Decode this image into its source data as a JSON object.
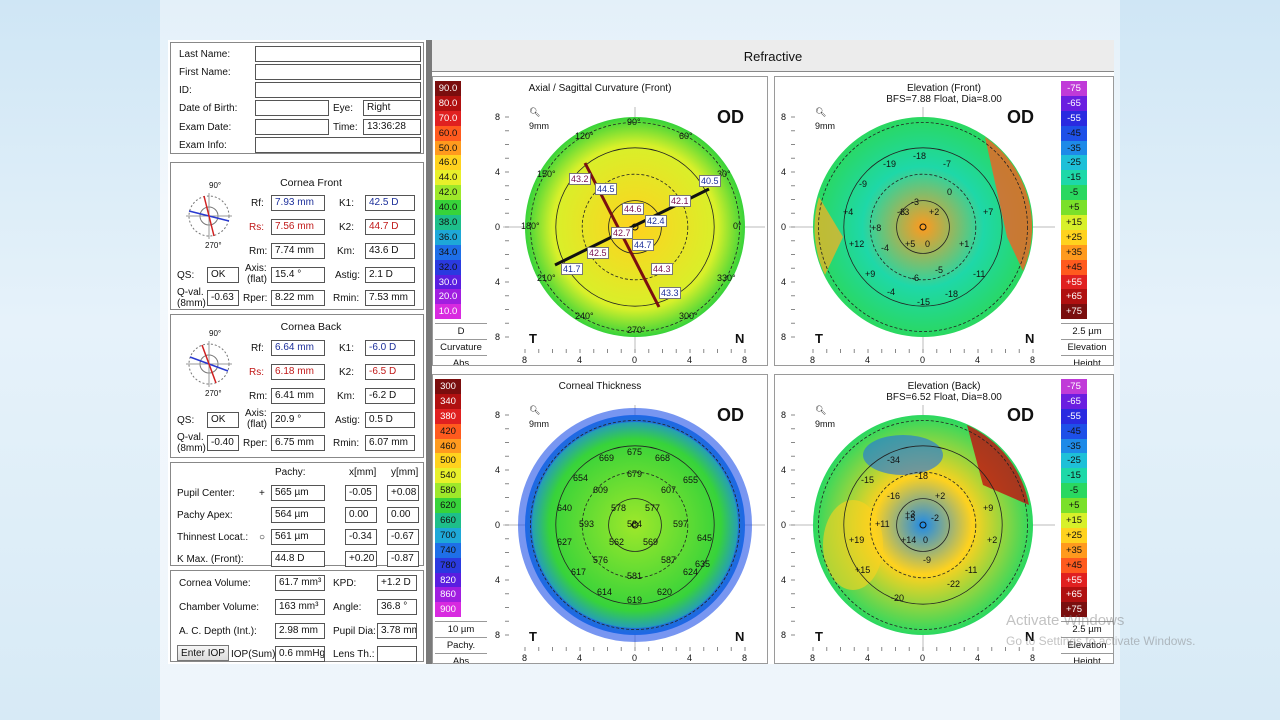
{
  "patient": {
    "last_name_label": "Last Name:",
    "first_name_label": "First Name:",
    "id_label": "ID:",
    "dob_label": "Date of Birth:",
    "eye_label": "Eye:",
    "eye_value": "Right",
    "exam_date_label": "Exam Date:",
    "time_label": "Time:",
    "time_value": "13:36:28",
    "exam_info_label": "Exam Info:"
  },
  "cornea_front": {
    "title": "Cornea Front",
    "rf_label": "Rf:",
    "rf": "7.93 mm",
    "k1_label": "K1:",
    "k1": "42.5 D",
    "rs_label": "Rs:",
    "rs": "7.56 mm",
    "k2_label": "K2:",
    "k2": "44.7 D",
    "rm_label": "Rm:",
    "rm": "7.74 mm",
    "km_label": "Km:",
    "km": "43.6 D",
    "qs_label": "QS:",
    "qs": "OK",
    "axis_label": "Axis:",
    "axis_sub": "(flat)",
    "axis": "15.4 °",
    "astig_label": "Astig:",
    "astig": "2.1 D",
    "qval_label": "Q-val.",
    "qval_sub": "(8mm)",
    "qval": "-0.63",
    "rper_label": "Rper:",
    "rper": "8.22 mm",
    "rmin_label": "Rmin:",
    "rmin": "7.53 mm",
    "deg_top": "90°",
    "deg_bottom": "270°"
  },
  "cornea_back": {
    "title": "Cornea Back",
    "rf_label": "Rf:",
    "rf": "6.64 mm",
    "k1_label": "K1:",
    "k1": "-6.0 D",
    "rs_label": "Rs:",
    "rs": "6.18 mm",
    "k2_label": "K2:",
    "k2": "-6.5 D",
    "rm_label": "Rm:",
    "rm": "6.41 mm",
    "km_label": "Km:",
    "km": "-6.2 D",
    "qs_label": "QS:",
    "qs": "OK",
    "axis_label": "Axis:",
    "axis_sub": "(flat)",
    "axis": "20.9 °",
    "astig_label": "Astig:",
    "astig": "0.5 D",
    "qval_label": "Q-val.",
    "qval_sub": "(8mm)",
    "qval": "-0.40",
    "rper_label": "Rper:",
    "rper": "6.75 mm",
    "rmin_label": "Rmin:",
    "rmin": "6.07 mm",
    "deg_top": "90°",
    "deg_bottom": "270°"
  },
  "pachy": {
    "col_pachy": "Pachy:",
    "col_x": "x[mm]",
    "col_y": "y[mm]",
    "rows": [
      {
        "label": "Pupil Center:",
        "mark": "+",
        "pachy": "565 µm",
        "x": "-0.05",
        "y": "+0.08"
      },
      {
        "label": "Pachy Apex:",
        "mark": "",
        "pachy": "564 µm",
        "x": "0.00",
        "y": "0.00"
      },
      {
        "label": "Thinnest Locat.:",
        "mark": "○",
        "pachy": "561 µm",
        "x": "-0.34",
        "y": "-0.67"
      },
      {
        "label": "K Max. (Front):",
        "mark": "",
        "pachy": "44.8 D",
        "x": "+0.20",
        "y": "-0.87"
      }
    ]
  },
  "volumes": {
    "cornea_volume_label": "Cornea Volume:",
    "cornea_volume": "61.7 mm³",
    "kpd_label": "KPD:",
    "kpd": "+1.2 D",
    "chamber_volume_label": "Chamber Volume:",
    "chamber_volume": "163 mm³",
    "angle_label": "Angle:",
    "angle": "36.8 °",
    "ac_depth_label": "A. C. Depth (Int.):",
    "ac_depth": "2.98 mm",
    "pupil_dia_label": "Pupil Dia:",
    "pupil_dia": "3.78 mm",
    "enter_iop": "Enter IOP",
    "iop_label": "IOP(Sum):",
    "iop": "0.6 mmHg",
    "lens_label": "Lens Th.:",
    "lens": ""
  },
  "header": {
    "title": "Refractive"
  },
  "maps": {
    "axial": {
      "title": "Axial / Sagittal Curvature (Front)",
      "subtitle": "",
      "eye": "OD",
      "t": "T",
      "n": "N",
      "zoom": "9mm",
      "scale": [
        "90.0",
        "80.0",
        "70.0",
        "60.0",
        "50.0",
        "46.0",
        "44.0",
        "42.0",
        "40.0",
        "38.0",
        "36.0",
        "34.0",
        "32.0",
        "30.0",
        "20.0",
        "10.0"
      ],
      "scale_colors": [
        "#7a0e0e",
        "#b01010",
        "#e02020",
        "#ff5a1e",
        "#ff9a1e",
        "#ffd21e",
        "#e8f02a",
        "#9ee82a",
        "#37d33a",
        "#1ebf8a",
        "#1ea8d8",
        "#1e6fe8",
        "#2a3ae0",
        "#5a1ee0",
        "#a01ee0",
        "#d82ae0"
      ],
      "unit": "D",
      "under1": "Curvature",
      "under2": "Abs",
      "labels": [
        "43.2",
        "44.5",
        "44.6",
        "42.4",
        "42.1",
        "40.5",
        "42.7",
        "44.7",
        "42.5",
        "41.7",
        "44.3",
        "43.3"
      ],
      "degrees": [
        "90°",
        "60°",
        "30°",
        "120°",
        "150°",
        "180°",
        "0°",
        "210°",
        "240°",
        "270°",
        "300°",
        "330°"
      ]
    },
    "elev_front": {
      "title": "Elevation (Front)",
      "subtitle": "BFS=7.88 Float, Dia=8.00",
      "eye": "OD",
      "t": "T",
      "n": "N",
      "zoom": "9mm",
      "scale": [
        "-75",
        "-65",
        "-55",
        "-45",
        "-35",
        "-25",
        "-15",
        "-5",
        "+5",
        "+15",
        "+25",
        "+35",
        "+45",
        "+55",
        "+65",
        "+75"
      ],
      "scale_colors": [
        "#c03ad8",
        "#6a1ee0",
        "#2a2ae0",
        "#1e50e8",
        "#1e8ae8",
        "#1ec0d8",
        "#1ed8a8",
        "#2ad860",
        "#7ae02a",
        "#d8f02a",
        "#ffd21e",
        "#ff9a1e",
        "#ff5a1e",
        "#e02020",
        "#b01010",
        "#7a0e0e"
      ],
      "unit": "2.5 µm",
      "under1": "Elevation",
      "under2": "Height",
      "labels": [
        "-19",
        "-18",
        "-7",
        "-9",
        "-3",
        "0",
        "-3",
        "+4",
        "+3",
        "+2",
        "+7",
        "+8",
        "-4",
        "+5",
        "0",
        "+1",
        "+12",
        "+9",
        "-6",
        "-5",
        "-11",
        "-4",
        "-15",
        "-18"
      ]
    },
    "thickness": {
      "title": "Corneal Thickness",
      "subtitle": "",
      "eye": "OD",
      "t": "T",
      "n": "N",
      "zoom": "9mm",
      "scale": [
        "300",
        "340",
        "380",
        "420",
        "460",
        "500",
        "540",
        "580",
        "620",
        "660",
        "700",
        "740",
        "780",
        "820",
        "860",
        "900"
      ],
      "scale_colors": [
        "#7a0e0e",
        "#b01010",
        "#e02020",
        "#ff5a1e",
        "#ff9a1e",
        "#ffd21e",
        "#e8f02a",
        "#9ee82a",
        "#37d33a",
        "#1ebf8a",
        "#1ea8d8",
        "#1e6fe8",
        "#2a3ae0",
        "#5a1ee0",
        "#a01ee0",
        "#d82ae0"
      ],
      "unit": "10 µm",
      "under1": "Pachy.",
      "under2": "Abs",
      "labels": [
        "675",
        "669",
        "668",
        "679",
        "654",
        "609",
        "607",
        "655",
        "578",
        "577",
        "640",
        "593",
        "584",
        "597",
        "645",
        "627",
        "562",
        "569",
        "635",
        "576",
        "587",
        "617",
        "581",
        "624",
        "614",
        "619",
        "620"
      ]
    },
    "elev_back": {
      "title": "Elevation (Back)",
      "subtitle": "BFS=6.52 Float, Dia=8.00",
      "eye": "OD",
      "t": "T",
      "n": "N",
      "zoom": "9mm",
      "scale": [
        "-75",
        "-65",
        "-55",
        "-45",
        "-35",
        "-25",
        "-15",
        "-5",
        "+5",
        "+15",
        "+25",
        "+35",
        "+45",
        "+55",
        "+65",
        "+75"
      ],
      "scale_colors": [
        "#c03ad8",
        "#6a1ee0",
        "#2a2ae0",
        "#1e50e8",
        "#1e8ae8",
        "#1ec0d8",
        "#1ed8a8",
        "#2ad860",
        "#7ae02a",
        "#d8f02a",
        "#ffd21e",
        "#ff9a1e",
        "#ff5a1e",
        "#e02020",
        "#b01010",
        "#7a0e0e"
      ],
      "unit": "2.5 µm",
      "under1": "Elevation",
      "under2": "Height",
      "labels": [
        "-34",
        "-15",
        "-18",
        "-16",
        "+2",
        "+3",
        "+9",
        "+11",
        "+5",
        "-2",
        "+19",
        "+14",
        "0",
        "+2",
        "+15",
        "-9",
        "-22",
        "-11",
        "-20"
      ]
    }
  },
  "axis_ticks": [
    "8",
    "4",
    "0",
    "4",
    "8"
  ],
  "watermark": {
    "line1": "Activate Windows",
    "line2": "Go to Settings to activate Windows."
  }
}
